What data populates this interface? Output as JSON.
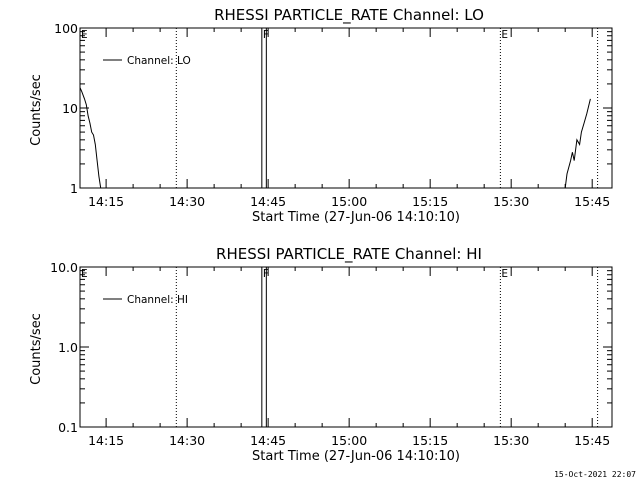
{
  "footer": {
    "timestamp": "15-Oct-2021 22:07"
  },
  "colors": {
    "line": "#000000",
    "background": "#ffffff"
  },
  "chart_data": [
    {
      "type": "line",
      "title": "RHESSI PARTICLE_RATE Channel: LO",
      "xlabel": "Start Time (27-Jun-06 14:10:10)",
      "ylabel": "Counts/sec",
      "x_unit": "minutes of day",
      "xlim": [
        "14:10:10",
        "15:48:40"
      ],
      "x_ticks": [
        "14:15",
        "14:30",
        "14:45",
        "15:00",
        "15:15",
        "15:30",
        "15:45"
      ],
      "yscale": "log",
      "ylim": [
        1,
        100
      ],
      "y_ticks": [
        "1",
        "10",
        "100"
      ],
      "legend": {
        "position": "top-left",
        "label": "Channel: LO"
      },
      "markers": [
        {
          "label": "E",
          "time": "14:10:10",
          "style": "dotted"
        },
        {
          "label": "",
          "time": "14:28",
          "style": "dotted"
        },
        {
          "label": "F",
          "time": "14:43:50",
          "style": "solid"
        },
        {
          "label": "",
          "time": "14:44:40",
          "style": "solid"
        },
        {
          "label": "E",
          "time": "15:28",
          "style": "dotted"
        },
        {
          "label": "",
          "time": "15:46",
          "style": "dotted"
        }
      ],
      "series": [
        {
          "name": "Channel: LO",
          "segments": [
            {
              "x": [
                "14:10:10",
                "14:10:30",
                "14:11:00",
                "14:11:20",
                "14:11:40",
                "14:12:00",
                "14:12:20",
                "14:12:40",
                "14:13:00",
                "14:13:20",
                "14:13:40",
                "14:14:00"
              ],
              "y": [
                18,
                16,
                13,
                11,
                8,
                6.5,
                5,
                4.6,
                3.5,
                2.2,
                1.4,
                1
              ]
            },
            {
              "x": [
                "15:40:00",
                "15:40:20",
                "15:41:00",
                "15:41:20",
                "15:41:40",
                "15:42:10",
                "15:42:40",
                "15:43:00",
                "15:43:30",
                "15:44:00",
                "15:44:20",
                "15:44:40"
              ],
              "y": [
                1,
                1.5,
                2.2,
                2.8,
                2.2,
                4,
                3.5,
                5,
                6.5,
                8.5,
                10.5,
                13
              ]
            }
          ]
        }
      ]
    },
    {
      "type": "line",
      "title": "RHESSI PARTICLE_RATE Channel: HI",
      "xlabel": "Start Time (27-Jun-06 14:10:10)",
      "ylabel": "Counts/sec",
      "x_unit": "minutes of day",
      "xlim": [
        "14:10:10",
        "15:48:40"
      ],
      "x_ticks": [
        "14:15",
        "14:30",
        "14:45",
        "15:00",
        "15:15",
        "15:30",
        "15:45"
      ],
      "yscale": "log",
      "ylim": [
        0.1,
        10
      ],
      "y_ticks": [
        "0.1",
        "1.0",
        "10.0"
      ],
      "legend": {
        "position": "top-left",
        "label": "Channel: HI"
      },
      "markers": [
        {
          "label": "E",
          "time": "14:10:10",
          "style": "dotted"
        },
        {
          "label": "",
          "time": "14:28",
          "style": "dotted"
        },
        {
          "label": "F",
          "time": "14:43:50",
          "style": "solid"
        },
        {
          "label": "",
          "time": "14:44:40",
          "style": "solid"
        },
        {
          "label": "E",
          "time": "15:28",
          "style": "dotted"
        },
        {
          "label": "",
          "time": "15:46",
          "style": "dotted"
        }
      ],
      "series": [
        {
          "name": "Channel: HI",
          "segments": []
        }
      ]
    }
  ]
}
